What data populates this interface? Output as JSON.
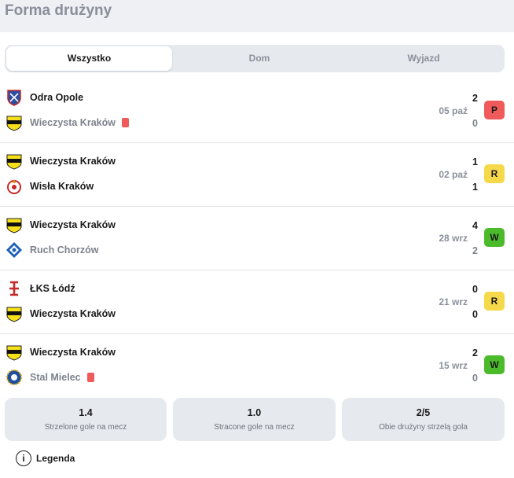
{
  "header": {
    "title": "Forma drużyny"
  },
  "tabs": [
    {
      "label": "Wszystko"
    },
    {
      "label": "Dom"
    },
    {
      "label": "Wyjazd"
    }
  ],
  "matches": [
    {
      "date": "05 paź",
      "result": "P",
      "home": {
        "name": "Odra Opole",
        "score": "2",
        "crest": "odra-crest-icon"
      },
      "away": {
        "name": "Wieczysta Kraków",
        "score": "0",
        "crest": "wieczysta-crest-icon",
        "red_card": true
      }
    },
    {
      "date": "02 paź",
      "result": "R",
      "home": {
        "name": "Wieczysta Kraków",
        "score": "1",
        "crest": "wieczysta-crest-icon"
      },
      "away": {
        "name": "Wisła Kraków",
        "score": "1",
        "crest": "wisla-crest-icon"
      }
    },
    {
      "date": "28 wrz",
      "result": "W",
      "home": {
        "name": "Wieczysta Kraków",
        "score": "4",
        "crest": "wieczysta-crest-icon"
      },
      "away": {
        "name": "Ruch Chorzów",
        "score": "2",
        "crest": "ruch-crest-icon"
      }
    },
    {
      "date": "21 wrz",
      "result": "R",
      "home": {
        "name": "ŁKS Łódź",
        "score": "0",
        "crest": "lks-crest-icon"
      },
      "away": {
        "name": "Wieczysta Kraków",
        "score": "0",
        "crest": "wieczysta-crest-icon"
      }
    },
    {
      "date": "15 wrz",
      "result": "W",
      "home": {
        "name": "Wieczysta Kraków",
        "score": "2",
        "crest": "wieczysta-crest-icon"
      },
      "away": {
        "name": "Stal Mielec",
        "score": "0",
        "crest": "stal-crest-icon",
        "red_card": true
      }
    }
  ],
  "stats": [
    {
      "value": "1.4",
      "label": "Strzelone gole na mecz"
    },
    {
      "value": "1.0",
      "label": "Stracone gole na mecz"
    },
    {
      "value": "2/5",
      "label": "Obie drużyny strzelą gola"
    }
  ],
  "legend": {
    "label": "Legenda",
    "icon": "info-icon"
  },
  "colors": {
    "loss": "#f05a5a",
    "draw": "#f5d94a",
    "win": "#4cbb2b",
    "red_card": "#f05a5a"
  }
}
